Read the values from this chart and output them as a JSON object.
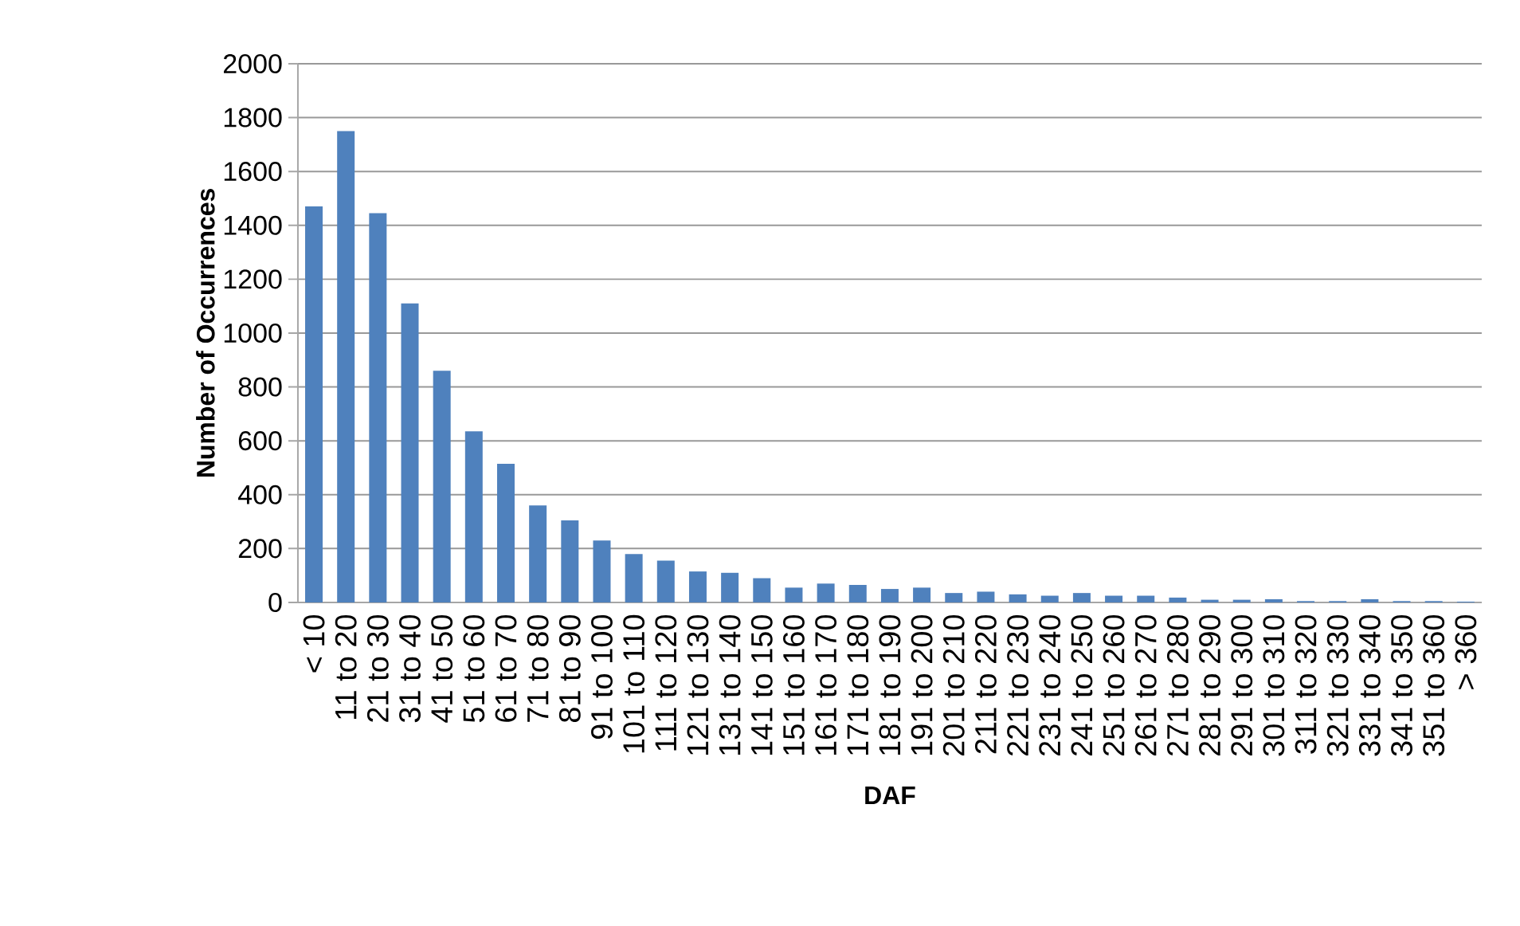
{
  "chart_data": {
    "type": "bar",
    "xlabel": "DAF",
    "ylabel": "Number of Occurrences",
    "categories": [
      "< 10",
      "11 to 20",
      "21 to 30",
      "31 to 40",
      "41 to 50",
      "51 to 60",
      "61 to 70",
      "71 to 80",
      "81 to 90",
      "91 to 100",
      "101 to 110",
      "111 to 120",
      "121 to 130",
      "131 to 140",
      "141 to 150",
      "151 to 160",
      "161 to 170",
      "171 to 180",
      "181 to 190",
      "191 to 200",
      "201 to 210",
      "211 to 220",
      "221 to 230",
      "231 to 240",
      "241 to 250",
      "251 to 260",
      "261 to 270",
      "271 to 280",
      "281 to 290",
      "291 to 300",
      "301 to 310",
      "311 to 320",
      "321 to 330",
      "331 to 340",
      "341 to 350",
      "351 to 360",
      "> 360"
    ],
    "values": [
      1470,
      1750,
      1445,
      1110,
      860,
      635,
      515,
      360,
      305,
      230,
      180,
      155,
      115,
      110,
      90,
      55,
      70,
      65,
      50,
      55,
      35,
      40,
      30,
      25,
      35,
      25,
      25,
      18,
      10,
      10,
      12,
      5,
      5,
      12,
      5,
      5,
      3
    ],
    "color": "#4f81bd",
    "ylim": [
      0,
      2000
    ],
    "yticks": [
      0,
      200,
      400,
      600,
      800,
      1000,
      1200,
      1400,
      1600,
      1800,
      2000
    ],
    "grid": "y"
  }
}
